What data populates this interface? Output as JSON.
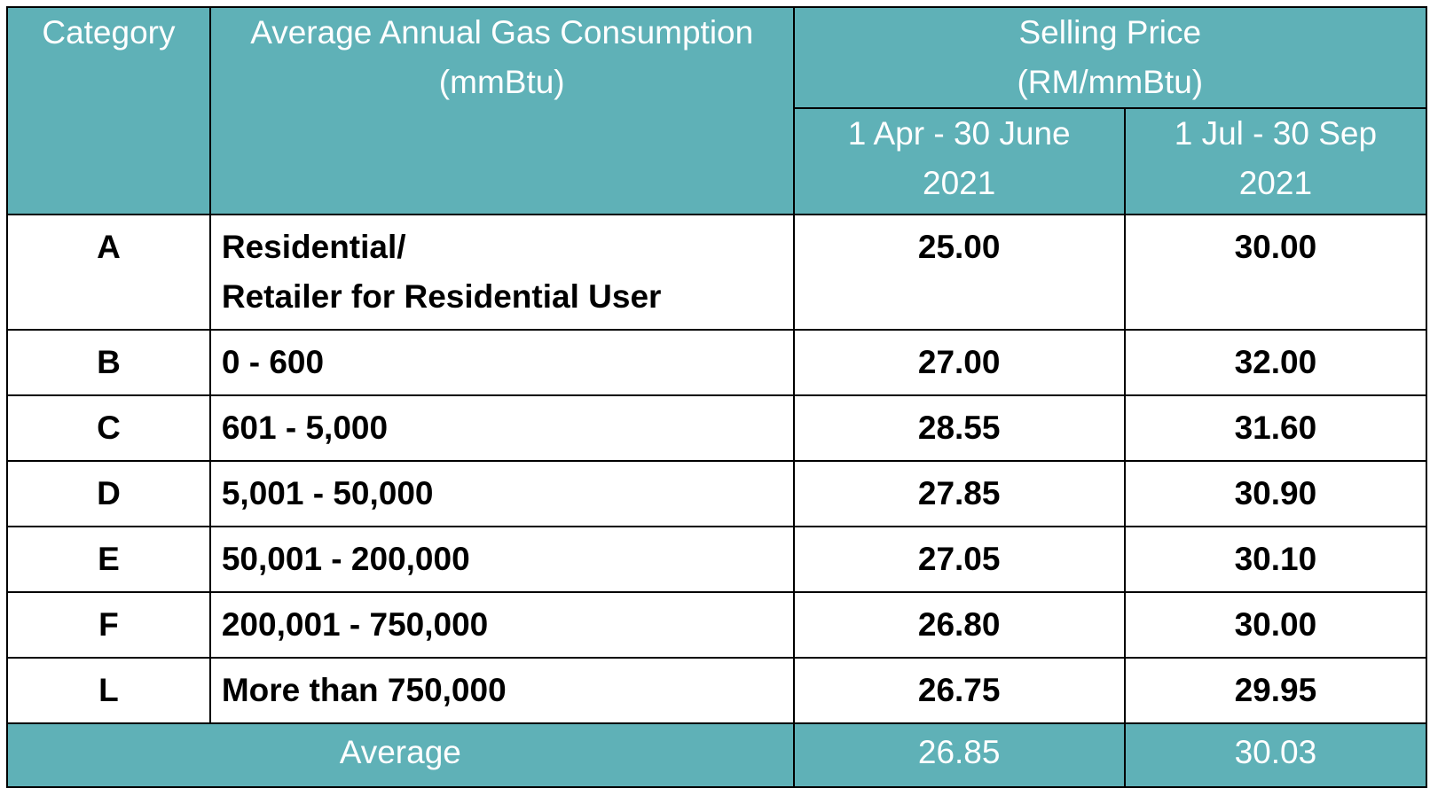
{
  "header": {
    "category": "Category",
    "consumption_line1": "Average Annual Gas Consumption",
    "consumption_line2": "(mmBtu)",
    "selling_line1": "Selling Price",
    "selling_line2": "(RM/mmBtu)",
    "period1_line1": "1 Apr -  30 June",
    "period1_line2": "2021",
    "period2_line1": "1 Jul - 30 Sep",
    "period2_line2": "2021"
  },
  "rows": [
    {
      "category": "A",
      "desc_line1": "Residential/",
      "desc_line2": "Retailer for Residential User",
      "p1": "25.00",
      "p2": "30.00"
    },
    {
      "category": "B",
      "desc_line1": "0 - 600",
      "p1": "27.00",
      "p2": "32.00"
    },
    {
      "category": "C",
      "desc_line1": "601 - 5,000",
      "p1": "28.55",
      "p2": "31.60"
    },
    {
      "category": "D",
      "desc_line1": "5,001 - 50,000",
      "p1": "27.85",
      "p2": "30.90"
    },
    {
      "category": "E",
      "desc_line1": "50,001 - 200,000",
      "p1": "27.05",
      "p2": "30.10"
    },
    {
      "category": "F",
      "desc_line1": "200,001 - 750,000",
      "p1": "26.80",
      "p2": "30.00"
    },
    {
      "category": "L",
      "desc_line1": "More than 750,000",
      "p1": "26.75",
      "p2": "29.95"
    }
  ],
  "footer": {
    "label": "Average",
    "p1": "26.85",
    "p2": "30.03"
  },
  "colors": {
    "header_bg": "#5fb1b7",
    "header_text": "#ffffff",
    "border": "#000000"
  }
}
